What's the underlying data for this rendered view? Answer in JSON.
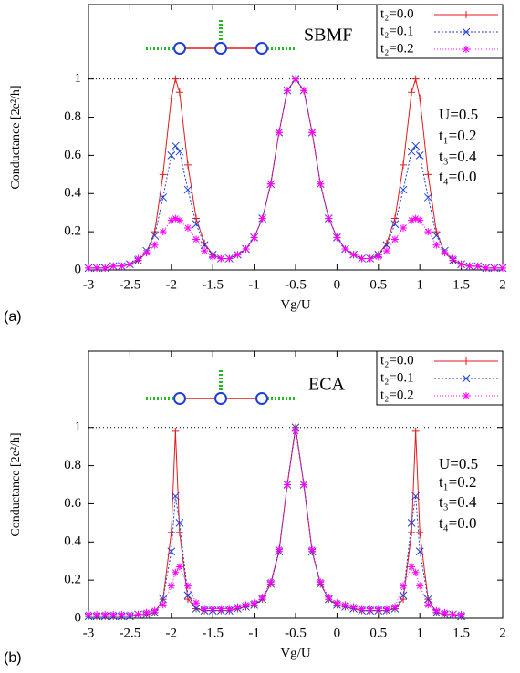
{
  "chart_data": [
    {
      "type": "line",
      "panel_label": "(a)",
      "title": "SBMF",
      "xlabel": "Vg/U",
      "ylabel": "Conductance [2e²/h]",
      "xlim": [
        -3,
        2
      ],
      "xticks": [
        -3,
        -2.5,
        -2,
        -1.5,
        -1,
        -0.5,
        0,
        0.5,
        1,
        1.5,
        2
      ],
      "ylim": [
        0,
        1.39
      ],
      "yticks": [
        0,
        0.2,
        0.4,
        0.6,
        0.8,
        1
      ],
      "hline": 1,
      "legend": "upper right",
      "annotations": [
        "U=0.5",
        "t₁=0.2",
        "t₃=0.4",
        "t₄=0.0"
      ],
      "x": [
        -3,
        -2.9,
        -2.8,
        -2.7,
        -2.6,
        -2.5,
        -2.4,
        -2.3,
        -2.2,
        -2.1,
        -2.0,
        -1.95,
        -1.9,
        -1.8,
        -1.7,
        -1.6,
        -1.5,
        -1.4,
        -1.3,
        -1.2,
        -1.1,
        -1.0,
        -0.9,
        -0.8,
        -0.7,
        -0.6,
        -0.5,
        -0.4,
        -0.3,
        -0.2,
        -0.1,
        0,
        0.1,
        0.2,
        0.3,
        0.4,
        0.5,
        0.6,
        0.7,
        0.8,
        0.9,
        0.95,
        1.0,
        1.1,
        1.2,
        1.3,
        1.4,
        1.5,
        1.6,
        1.7,
        1.8,
        1.9,
        2.0
      ],
      "series": [
        {
          "name": "t₂=0.0",
          "color": "#e41a1c",
          "marker": "plus",
          "dash": "none",
          "values": [
            0.01,
            0.01,
            0.01,
            0.02,
            0.02,
            0.03,
            0.05,
            0.09,
            0.2,
            0.5,
            0.9,
            1.0,
            0.93,
            0.55,
            0.27,
            0.14,
            0.08,
            0.06,
            0.06,
            0.08,
            0.11,
            0.17,
            0.27,
            0.45,
            0.72,
            0.94,
            1.0,
            0.94,
            0.72,
            0.45,
            0.27,
            0.17,
            0.11,
            0.08,
            0.06,
            0.06,
            0.08,
            0.14,
            0.27,
            0.55,
            0.93,
            1.0,
            0.9,
            0.5,
            0.2,
            0.09,
            0.05,
            0.03,
            0.02,
            0.02,
            0.01,
            0.01,
            0.01
          ]
        },
        {
          "name": "t₂=0.1",
          "color": "#1f3fd6",
          "marker": "cross",
          "dash": "2,2",
          "values": [
            0.01,
            0.01,
            0.01,
            0.02,
            0.02,
            0.03,
            0.05,
            0.1,
            0.18,
            0.38,
            0.6,
            0.65,
            0.62,
            0.42,
            0.24,
            0.13,
            0.08,
            0.06,
            0.06,
            0.08,
            0.11,
            0.17,
            0.27,
            0.45,
            0.72,
            0.94,
            1.0,
            0.94,
            0.72,
            0.45,
            0.27,
            0.17,
            0.11,
            0.08,
            0.06,
            0.06,
            0.08,
            0.13,
            0.24,
            0.42,
            0.62,
            0.65,
            0.6,
            0.38,
            0.18,
            0.1,
            0.05,
            0.03,
            0.02,
            0.02,
            0.01,
            0.01,
            0.01
          ]
        },
        {
          "name": "t₂=0.2",
          "color": "#ff00ff",
          "marker": "star",
          "dash": "1,2",
          "values": [
            0.01,
            0.01,
            0.01,
            0.02,
            0.02,
            0.03,
            0.06,
            0.09,
            0.13,
            0.2,
            0.26,
            0.27,
            0.26,
            0.22,
            0.16,
            0.1,
            0.07,
            0.06,
            0.06,
            0.08,
            0.11,
            0.17,
            0.27,
            0.45,
            0.72,
            0.94,
            1.0,
            0.94,
            0.72,
            0.45,
            0.27,
            0.17,
            0.11,
            0.08,
            0.06,
            0.06,
            0.07,
            0.1,
            0.16,
            0.22,
            0.26,
            0.27,
            0.26,
            0.2,
            0.13,
            0.09,
            0.06,
            0.03,
            0.02,
            0.02,
            0.01,
            0.01,
            0.01
          ]
        }
      ]
    },
    {
      "type": "line",
      "panel_label": "(b)",
      "title": "ECA",
      "xlabel": "Vg/U",
      "ylabel": "Conductance [2e²/h]",
      "xlim": [
        -3,
        2
      ],
      "xticks": [
        -3,
        -2.5,
        -2,
        -1.5,
        -1,
        -0.5,
        0,
        0.5,
        1,
        1.5,
        2
      ],
      "ylim": [
        0,
        1.4
      ],
      "yticks": [
        0,
        0.2,
        0.4,
        0.6,
        0.8,
        1
      ],
      "hline": 1,
      "legend": "upper right",
      "annotations": [
        "U=0.5",
        "t₁=0.2",
        "t₃=0.4",
        "t₄=0.0"
      ],
      "x": [
        -3,
        -2.9,
        -2.8,
        -2.7,
        -2.6,
        -2.5,
        -2.4,
        -2.3,
        -2.2,
        -2.1,
        -2.0,
        -1.95,
        -1.9,
        -1.8,
        -1.7,
        -1.6,
        -1.5,
        -1.4,
        -1.3,
        -1.2,
        -1.1,
        -1.0,
        -0.9,
        -0.8,
        -0.7,
        -0.6,
        -0.5,
        -0.4,
        -0.3,
        -0.2,
        -0.1,
        0,
        0.1,
        0.2,
        0.3,
        0.4,
        0.5,
        0.6,
        0.7,
        0.8,
        0.9,
        0.95,
        1.0,
        1.1,
        1.2,
        1.3,
        1.4,
        1.5
      ],
      "series": [
        {
          "name": "t₂=0.0",
          "color": "#e41a1c",
          "marker": "plus",
          "dash": "none",
          "values": [
            0.01,
            0.01,
            0.01,
            0.01,
            0.01,
            0.01,
            0.02,
            0.02,
            0.03,
            0.1,
            0.45,
            0.98,
            0.45,
            0.1,
            0.05,
            0.04,
            0.04,
            0.04,
            0.04,
            0.05,
            0.06,
            0.07,
            0.1,
            0.18,
            0.35,
            0.7,
            1.0,
            0.7,
            0.35,
            0.18,
            0.1,
            0.07,
            0.06,
            0.05,
            0.04,
            0.04,
            0.04,
            0.04,
            0.05,
            0.1,
            0.45,
            0.98,
            0.45,
            0.1,
            0.03,
            0.02,
            0.02,
            0.01
          ]
        },
        {
          "name": "t₂=0.1",
          "color": "#1f3fd6",
          "marker": "cross",
          "dash": "2,2",
          "values": [
            0.01,
            0.01,
            0.01,
            0.01,
            0.01,
            0.01,
            0.02,
            0.02,
            0.03,
            0.1,
            0.35,
            0.64,
            0.5,
            0.12,
            0.05,
            0.04,
            0.04,
            0.04,
            0.04,
            0.05,
            0.06,
            0.07,
            0.1,
            0.18,
            0.35,
            0.7,
            1.0,
            0.7,
            0.35,
            0.18,
            0.1,
            0.07,
            0.06,
            0.05,
            0.04,
            0.04,
            0.04,
            0.04,
            0.05,
            0.12,
            0.5,
            0.64,
            0.35,
            0.1,
            0.03,
            0.02,
            0.02,
            0.01
          ]
        },
        {
          "name": "t₂=0.2",
          "color": "#ff00ff",
          "marker": "star",
          "dash": "1,2",
          "values": [
            0.02,
            0.02,
            0.02,
            0.02,
            0.02,
            0.02,
            0.02,
            0.03,
            0.04,
            0.07,
            0.17,
            0.24,
            0.27,
            0.17,
            0.08,
            0.05,
            0.05,
            0.05,
            0.05,
            0.06,
            0.07,
            0.08,
            0.11,
            0.19,
            0.36,
            0.7,
            0.98,
            0.7,
            0.36,
            0.19,
            0.11,
            0.08,
            0.07,
            0.06,
            0.05,
            0.05,
            0.05,
            0.05,
            0.06,
            0.17,
            0.27,
            0.24,
            0.17,
            0.07,
            0.04,
            0.03,
            0.02,
            0.02
          ]
        }
      ]
    }
  ]
}
